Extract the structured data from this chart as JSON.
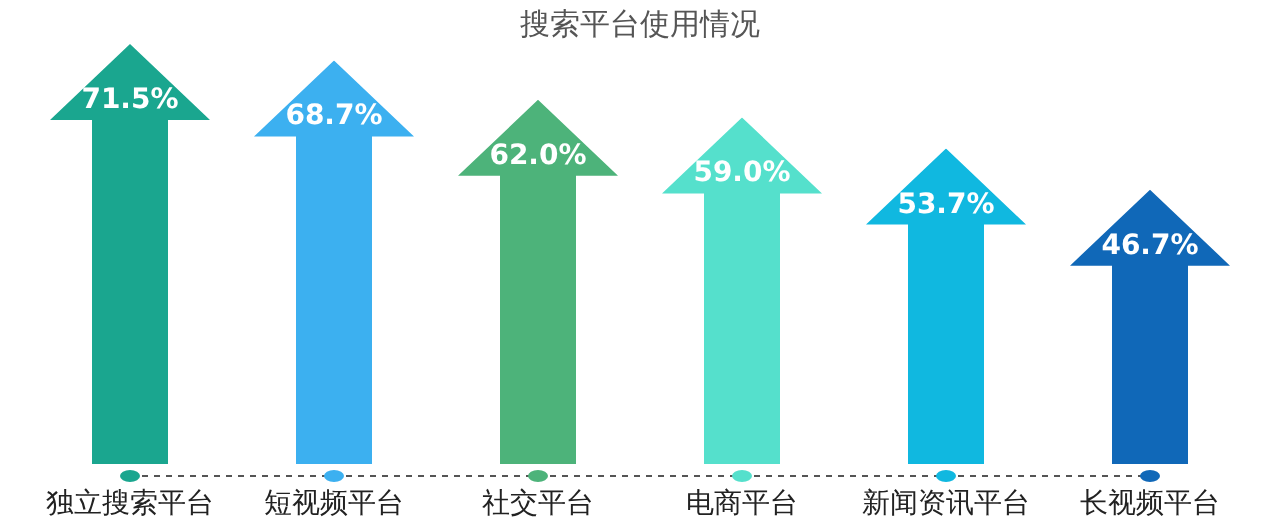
{
  "chart_data": {
    "type": "bar",
    "title": "搜索平台使用情况",
    "categories": [
      "独立搜索平台",
      "短视频平台",
      "社交平台",
      "电商平台",
      "新闻资讯平台",
      "长视频平台"
    ],
    "values": [
      71.5,
      68.7,
      62.0,
      59.0,
      53.7,
      46.7
    ],
    "colors": [
      "#1aa68f",
      "#3cb0f0",
      "#4db37a",
      "#55e0cc",
      "#10b8e0",
      "#1068b8"
    ],
    "value_labels": [
      "71.5%",
      "68.7%",
      "62.0%",
      "59.0%",
      "53.7%",
      "46.7%"
    ],
    "tick_labels": "x"
  }
}
